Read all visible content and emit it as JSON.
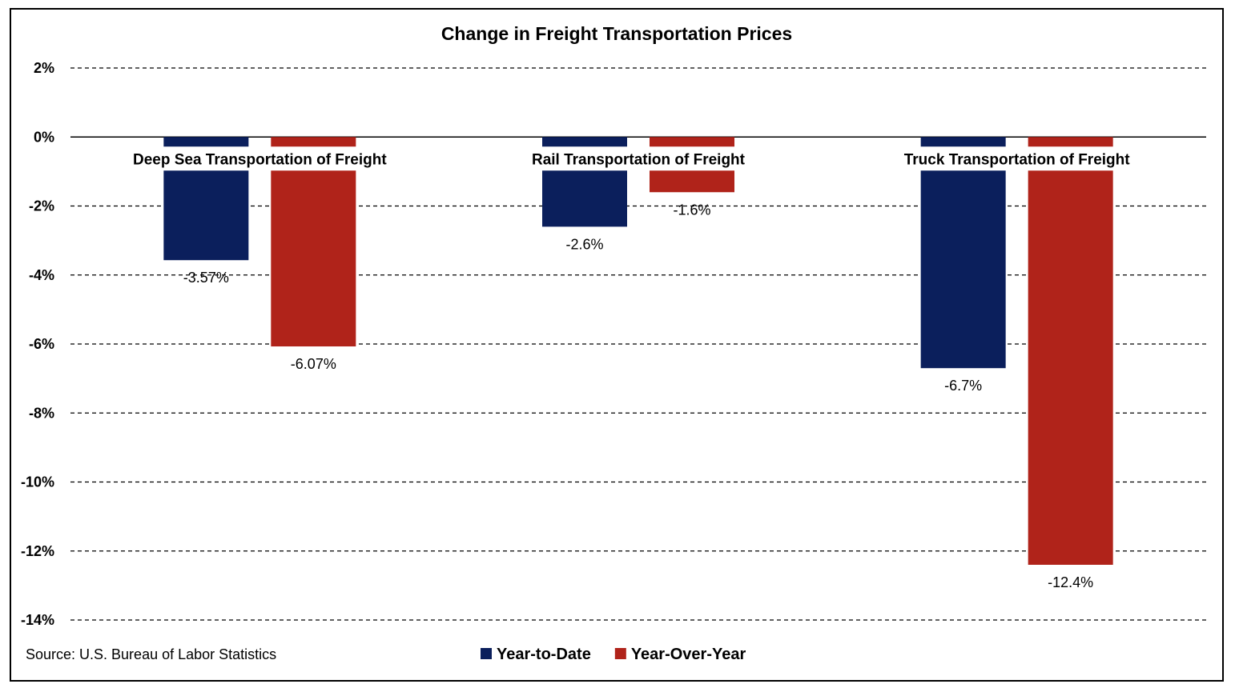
{
  "chart_data": {
    "type": "bar",
    "title": "Change in Freight Transportation Prices",
    "categories": [
      "Deep Sea Transportation of Freight",
      "Rail Transportation of Freight",
      "Truck Transportation of Freight"
    ],
    "series": [
      {
        "name": "Year-to-Date",
        "color": "#0b1f5c",
        "values": [
          -3.57,
          -2.6,
          -6.7
        ],
        "labels": [
          "-3.57%",
          "-2.6%",
          "-6.7%"
        ]
      },
      {
        "name": "Year-Over-Year",
        "color": "#b0231a",
        "values": [
          -6.07,
          -1.6,
          -12.4
        ],
        "labels": [
          "-6.07%",
          "-1.6%",
          "-12.4%"
        ]
      }
    ],
    "ylim": [
      -14,
      2
    ],
    "yticks": [
      2,
      0,
      -2,
      -4,
      -6,
      -8,
      -10,
      -12,
      -14
    ],
    "ytick_labels": [
      "2%",
      "0%",
      "-2%",
      "-4%",
      "-6%",
      "-8%",
      "-10%",
      "-12%",
      "-14%"
    ],
    "grid": true,
    "legend_position": "bottom-center",
    "source": "Source: U.S. Bureau of Labor Statistics"
  }
}
